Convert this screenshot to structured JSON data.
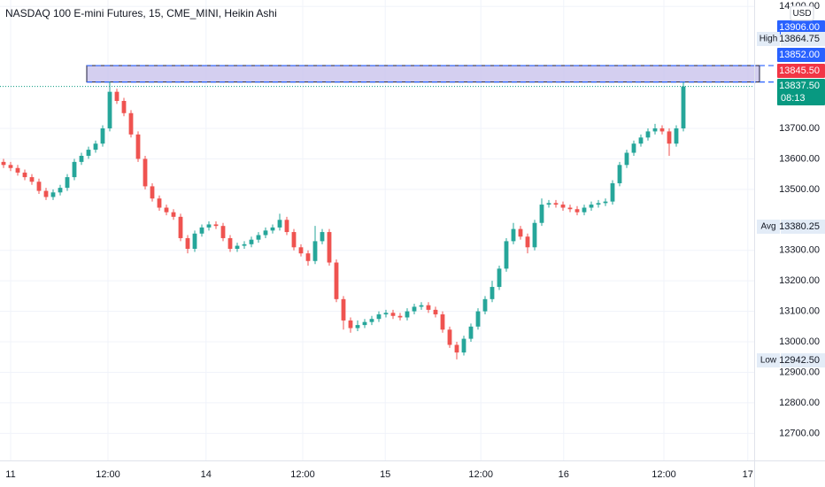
{
  "chart_data": {
    "type": "candlestick",
    "title": "NASDAQ 100 E-mini Futures, 15, CME_MINI, Heikin Ashi",
    "currency": "USD",
    "up_color": "#26a69a",
    "down_color": "#ef5350",
    "grid": true,
    "xlim": [
      -0.5,
      106
    ],
    "ylim": [
      12611,
      14121
    ],
    "yticks": [
      {
        "value": 12700,
        "label": "12700.00"
      },
      {
        "value": 12800,
        "label": "12800.00"
      },
      {
        "value": 12900,
        "label": "12900.00"
      },
      {
        "value": 13000,
        "label": "13000.00"
      },
      {
        "value": 13100,
        "label": "13100.00"
      },
      {
        "value": 13200,
        "label": "13200.00"
      },
      {
        "value": 13300,
        "label": "13300.00"
      },
      {
        "value": 13500,
        "label": "13500.00"
      },
      {
        "value": 13600,
        "label": "13600.00"
      },
      {
        "value": 13700,
        "label": "13700.00"
      },
      {
        "value": 14100,
        "label": "14100.00"
      }
    ],
    "xticks": [
      {
        "value": 1,
        "label": "11"
      },
      {
        "value": 14.75,
        "label": "12:00"
      },
      {
        "value": 28.6,
        "label": "14"
      },
      {
        "value": 42.25,
        "label": "12:00"
      },
      {
        "value": 53.9,
        "label": "15"
      },
      {
        "value": 67.4,
        "label": "12:00"
      },
      {
        "value": 79.1,
        "label": "16"
      },
      {
        "value": 93.25,
        "label": "12:00"
      },
      {
        "value": 105.1,
        "label": "17"
      }
    ],
    "candles": [
      [
        13590,
        13600,
        13570,
        13580
      ],
      [
        13580,
        13590,
        13560,
        13570
      ],
      [
        13570,
        13580,
        13545,
        13555
      ],
      [
        13555,
        13565,
        13530,
        13540
      ],
      [
        13540,
        13550,
        13515,
        13525
      ],
      [
        13525,
        13535,
        13485,
        13495
      ],
      [
        13495,
        13505,
        13465,
        13475
      ],
      [
        13475,
        13500,
        13465,
        13490
      ],
      [
        13490,
        13515,
        13480,
        13505
      ],
      [
        13505,
        13550,
        13495,
        13540
      ],
      [
        13540,
        13600,
        13530,
        13590
      ],
      [
        13590,
        13620,
        13580,
        13610
      ],
      [
        13610,
        13640,
        13600,
        13630
      ],
      [
        13630,
        13660,
        13620,
        13650
      ],
      [
        13650,
        13710,
        13640,
        13700
      ],
      [
        13700,
        13854,
        13690,
        13820
      ],
      [
        13820,
        13830,
        13780,
        13790
      ],
      [
        13790,
        13800,
        13740,
        13750
      ],
      [
        13750,
        13760,
        13670,
        13680
      ],
      [
        13680,
        13690,
        13590,
        13600
      ],
      [
        13600,
        13610,
        13500,
        13510
      ],
      [
        13510,
        13520,
        13460,
        13470
      ],
      [
        13470,
        13480,
        13430,
        13440
      ],
      [
        13440,
        13450,
        13415,
        13425
      ],
      [
        13425,
        13435,
        13400,
        13410
      ],
      [
        13410,
        13420,
        13330,
        13340
      ],
      [
        13340,
        13350,
        13290,
        13305
      ],
      [
        13305,
        13365,
        13295,
        13355
      ],
      [
        13355,
        13385,
        13345,
        13375
      ],
      [
        13375,
        13395,
        13365,
        13385
      ],
      [
        13385,
        13395,
        13370,
        13380
      ],
      [
        13380,
        13390,
        13330,
        13340
      ],
      [
        13340,
        13350,
        13295,
        13305
      ],
      [
        13305,
        13325,
        13295,
        13315
      ],
      [
        13315,
        13330,
        13305,
        13320
      ],
      [
        13320,
        13345,
        13310,
        13335
      ],
      [
        13335,
        13360,
        13325,
        13350
      ],
      [
        13350,
        13375,
        13340,
        13365
      ],
      [
        13365,
        13385,
        13355,
        13375
      ],
      [
        13375,
        13420,
        13365,
        13400
      ],
      [
        13400,
        13410,
        13350,
        13360
      ],
      [
        13360,
        13370,
        13300,
        13310
      ],
      [
        13310,
        13320,
        13280,
        13290
      ],
      [
        13290,
        13300,
        13250,
        13265
      ],
      [
        13265,
        13380,
        13255,
        13330
      ],
      [
        13330,
        13370,
        13320,
        13360
      ],
      [
        13360,
        13370,
        13250,
        13260
      ],
      [
        13260,
        13270,
        13130,
        13140
      ],
      [
        13140,
        13150,
        13040,
        13070
      ],
      [
        13070,
        13080,
        13030,
        13045
      ],
      [
        13045,
        13070,
        13035,
        13055
      ],
      [
        13055,
        13075,
        13045,
        13065
      ],
      [
        13065,
        13085,
        13055,
        13075
      ],
      [
        13075,
        13100,
        13065,
        13090
      ],
      [
        13090,
        13105,
        13080,
        13095
      ],
      [
        13095,
        13105,
        13075,
        13085
      ],
      [
        13085,
        13095,
        13070,
        13080
      ],
      [
        13080,
        13110,
        13070,
        13100
      ],
      [
        13100,
        13125,
        13090,
        13115
      ],
      [
        13115,
        13130,
        13105,
        13120
      ],
      [
        13120,
        13130,
        13095,
        13105
      ],
      [
        13105,
        13115,
        13080,
        13090
      ],
      [
        13090,
        13100,
        13030,
        13040
      ],
      [
        13040,
        13050,
        12980,
        12990
      ],
      [
        12990,
        13000,
        12942.5,
        12965
      ],
      [
        12965,
        13020,
        12955,
        13010
      ],
      [
        13010,
        13060,
        13000,
        13050
      ],
      [
        13050,
        13110,
        13040,
        13100
      ],
      [
        13100,
        13150,
        13090,
        13140
      ],
      [
        13140,
        13200,
        13130,
        13180
      ],
      [
        13180,
        13250,
        13170,
        13240
      ],
      [
        13240,
        13340,
        13230,
        13330
      ],
      [
        13330,
        13390,
        13320,
        13370
      ],
      [
        13370,
        13380,
        13335,
        13345
      ],
      [
        13345,
        13355,
        13290,
        13310
      ],
      [
        13310,
        13400,
        13300,
        13390
      ],
      [
        13390,
        13470,
        13380,
        13450
      ],
      [
        13450,
        13465,
        13440,
        13455
      ],
      [
        13455,
        13465,
        13440,
        13450
      ],
      [
        13450,
        13460,
        13430,
        13440
      ],
      [
        13440,
        13450,
        13425,
        13435
      ],
      [
        13435,
        13445,
        13415,
        13425
      ],
      [
        13425,
        13450,
        13415,
        13440
      ],
      [
        13440,
        13460,
        13430,
        13450
      ],
      [
        13450,
        13465,
        13440,
        13455
      ],
      [
        13455,
        13470,
        13445,
        13460
      ],
      [
        13460,
        13530,
        13450,
        13520
      ],
      [
        13520,
        13590,
        13510,
        13580
      ],
      [
        13580,
        13630,
        13570,
        13620
      ],
      [
        13620,
        13660,
        13610,
        13650
      ],
      [
        13650,
        13680,
        13640,
        13670
      ],
      [
        13670,
        13700,
        13660,
        13690
      ],
      [
        13690,
        13715,
        13680,
        13700
      ],
      [
        13700,
        13710,
        13680,
        13690
      ],
      [
        13690,
        13700,
        13610,
        13650
      ],
      [
        13650,
        13710,
        13640,
        13700
      ],
      [
        13700,
        13852,
        13690,
        13837.5
      ]
    ],
    "zone": {
      "x": [
        11.75,
        106.75
      ],
      "color": "#c9c3ec"
    },
    "badges": [
      {
        "value": 13906,
        "label": "13906.00",
        "color": "#2962ff"
      },
      {
        "name": "High",
        "value": 13864.75
      },
      {
        "value": 13852,
        "label": "13852.00",
        "color": "#2962ff"
      },
      {
        "value": 13845.5,
        "label": "13845.50",
        "color": "#f23645"
      },
      {
        "value": 13837.5,
        "label": "13837.50",
        "color": "#089981",
        "countdown": "08:13"
      },
      {
        "name": "Avg",
        "value": 13380.25
      },
      {
        "name": "Low",
        "value": 12942.5,
        "label": "12942.50"
      }
    ]
  }
}
